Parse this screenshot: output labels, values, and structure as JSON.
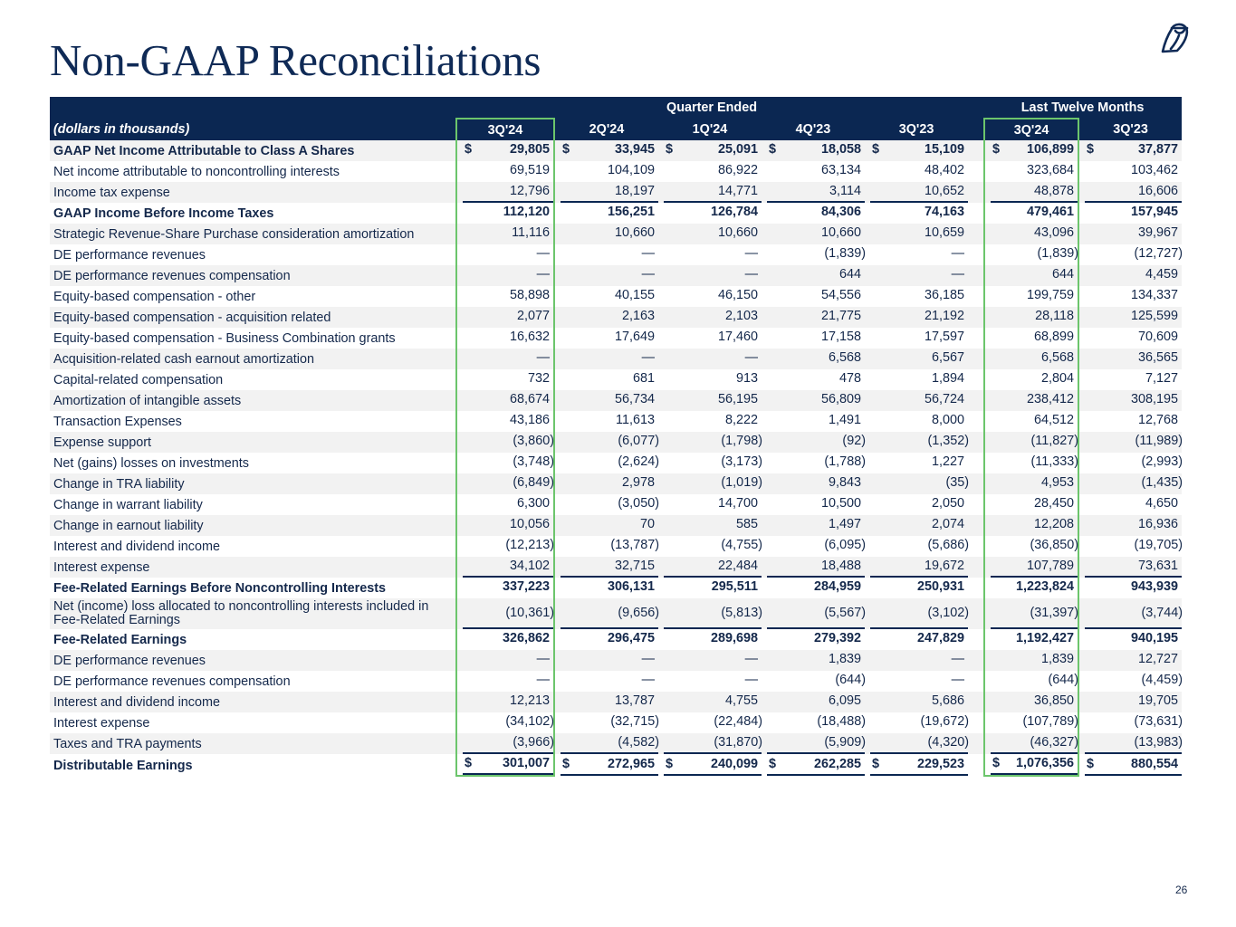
{
  "title": "Non-GAAP Reconciliations",
  "page_number": "26",
  "colors": {
    "navy": "#0b2752",
    "highlight": "#6cc56c",
    "stripe": "#f2f2f2"
  },
  "logo_icon": "owl-logo-icon",
  "header": {
    "group_quarter": "Quarter Ended",
    "group_ltm": "Last Twelve Months",
    "units": "(dollars in thousands)",
    "columns": [
      "3Q'24",
      "2Q'24",
      "1Q'24",
      "4Q'23",
      "3Q'23",
      "3Q'24",
      "3Q'23"
    ]
  },
  "rows": [
    {
      "label": "GAAP Net Income Attributable to Class A Shares",
      "bold": true,
      "dollar": true,
      "values": [
        "29,805",
        "33,945",
        "25,091",
        "18,058",
        "15,109",
        "106,899",
        "37,877"
      ]
    },
    {
      "label": "Net income attributable to noncontrolling interests",
      "values": [
        "69,519",
        "104,109",
        "86,922",
        "63,134",
        "48,402",
        "323,684",
        "103,462"
      ]
    },
    {
      "label": "Income tax expense",
      "underline": true,
      "values": [
        "12,796",
        "18,197",
        "14,771",
        "3,114",
        "10,652",
        "48,878",
        "16,606"
      ]
    },
    {
      "label": "GAAP Income Before Income Taxes",
      "bold": true,
      "values": [
        "112,120",
        "156,251",
        "126,784",
        "84,306",
        "74,163",
        "479,461",
        "157,945"
      ]
    },
    {
      "label": "Strategic Revenue-Share Purchase consideration amortization",
      "values": [
        "11,116",
        "10,660",
        "10,660",
        "10,660",
        "10,659",
        "43,096",
        "39,967"
      ]
    },
    {
      "label": "DE performance revenues",
      "values": [
        "—",
        "—",
        "—",
        "(1,839)",
        "—",
        "(1,839)",
        "(12,727)"
      ]
    },
    {
      "label": "DE performance revenues compensation",
      "values": [
        "—",
        "—",
        "—",
        "644",
        "—",
        "644",
        "4,459"
      ]
    },
    {
      "label": "Equity-based compensation - other",
      "values": [
        "58,898",
        "40,155",
        "46,150",
        "54,556",
        "36,185",
        "199,759",
        "134,337"
      ]
    },
    {
      "label": "Equity-based compensation - acquisition related",
      "values": [
        "2,077",
        "2,163",
        "2,103",
        "21,775",
        "21,192",
        "28,118",
        "125,599"
      ]
    },
    {
      "label": "Equity-based compensation - Business Combination grants",
      "values": [
        "16,632",
        "17,649",
        "17,460",
        "17,158",
        "17,597",
        "68,899",
        "70,609"
      ]
    },
    {
      "label": "Acquisition-related cash earnout amortization",
      "values": [
        "—",
        "—",
        "—",
        "6,568",
        "6,567",
        "6,568",
        "36,565"
      ]
    },
    {
      "label": "Capital-related compensation",
      "values": [
        "732",
        "681",
        "913",
        "478",
        "1,894",
        "2,804",
        "7,127"
      ]
    },
    {
      "label": "Amortization of intangible assets",
      "values": [
        "68,674",
        "56,734",
        "56,195",
        "56,809",
        "56,724",
        "238,412",
        "308,195"
      ]
    },
    {
      "label": "Transaction Expenses",
      "values": [
        "43,186",
        "11,613",
        "8,222",
        "1,491",
        "8,000",
        "64,512",
        "12,768"
      ]
    },
    {
      "label": "Expense support",
      "values": [
        "(3,860)",
        "(6,077)",
        "(1,798)",
        "(92)",
        "(1,352)",
        "(11,827)",
        "(11,989)"
      ]
    },
    {
      "label": "Net (gains) losses on investments",
      "values": [
        "(3,748)",
        "(2,624)",
        "(3,173)",
        "(1,788)",
        "1,227",
        "(11,333)",
        "(2,993)"
      ]
    },
    {
      "label": "Change in TRA liability",
      "values": [
        "(6,849)",
        "2,978",
        "(1,019)",
        "9,843",
        "(35)",
        "4,953",
        "(1,435)"
      ]
    },
    {
      "label": "Change in warrant liability",
      "values": [
        "6,300",
        "(3,050)",
        "14,700",
        "10,500",
        "2,050",
        "28,450",
        "4,650"
      ]
    },
    {
      "label": "Change in earnout liability",
      "values": [
        "10,056",
        "70",
        "585",
        "1,497",
        "2,074",
        "12,208",
        "16,936"
      ]
    },
    {
      "label": "Interest and dividend income",
      "values": [
        "(12,213)",
        "(13,787)",
        "(4,755)",
        "(6,095)",
        "(5,686)",
        "(36,850)",
        "(19,705)"
      ]
    },
    {
      "label": "Interest expense",
      "underline": true,
      "values": [
        "34,102",
        "32,715",
        "22,484",
        "18,488",
        "19,672",
        "107,789",
        "73,631"
      ]
    },
    {
      "label": "Fee-Related Earnings Before Noncontrolling Interests",
      "bold": true,
      "values": [
        "337,223",
        "306,131",
        "295,511",
        "284,959",
        "250,931",
        "1,223,824",
        "943,939"
      ]
    },
    {
      "label": "Net (income) loss allocated to noncontrolling interests included in Fee-Related Earnings",
      "two_line": true,
      "underline": true,
      "values": [
        "(10,361)",
        "(9,656)",
        "(5,813)",
        "(5,567)",
        "(3,102)",
        "(31,397)",
        "(3,744)"
      ]
    },
    {
      "label": "Fee-Related Earnings",
      "bold": true,
      "values": [
        "326,862",
        "296,475",
        "289,698",
        "279,392",
        "247,829",
        "1,192,427",
        "940,195"
      ]
    },
    {
      "label": "DE performance revenues",
      "values": [
        "—",
        "—",
        "—",
        "1,839",
        "—",
        "1,839",
        "12,727"
      ]
    },
    {
      "label": "DE performance revenues compensation",
      "values": [
        "—",
        "—",
        "—",
        "(644)",
        "—",
        "(644)",
        "(4,459)"
      ]
    },
    {
      "label": "Interest and dividend income",
      "values": [
        "12,213",
        "13,787",
        "4,755",
        "6,095",
        "5,686",
        "36,850",
        "19,705"
      ]
    },
    {
      "label": "Interest expense",
      "values": [
        "(34,102)",
        "(32,715)",
        "(22,484)",
        "(18,488)",
        "(19,672)",
        "(107,789)",
        "(73,631)"
      ]
    },
    {
      "label": "Taxes and TRA payments",
      "underline": true,
      "values": [
        "(3,966)",
        "(4,582)",
        "(31,870)",
        "(5,909)",
        "(4,320)",
        "(46,327)",
        "(13,983)"
      ]
    },
    {
      "label": "Distributable Earnings",
      "bold": true,
      "dollar": true,
      "underline": true,
      "values": [
        "301,007",
        "272,965",
        "240,099",
        "262,285",
        "229,523",
        "1,076,356",
        "880,554"
      ]
    }
  ]
}
